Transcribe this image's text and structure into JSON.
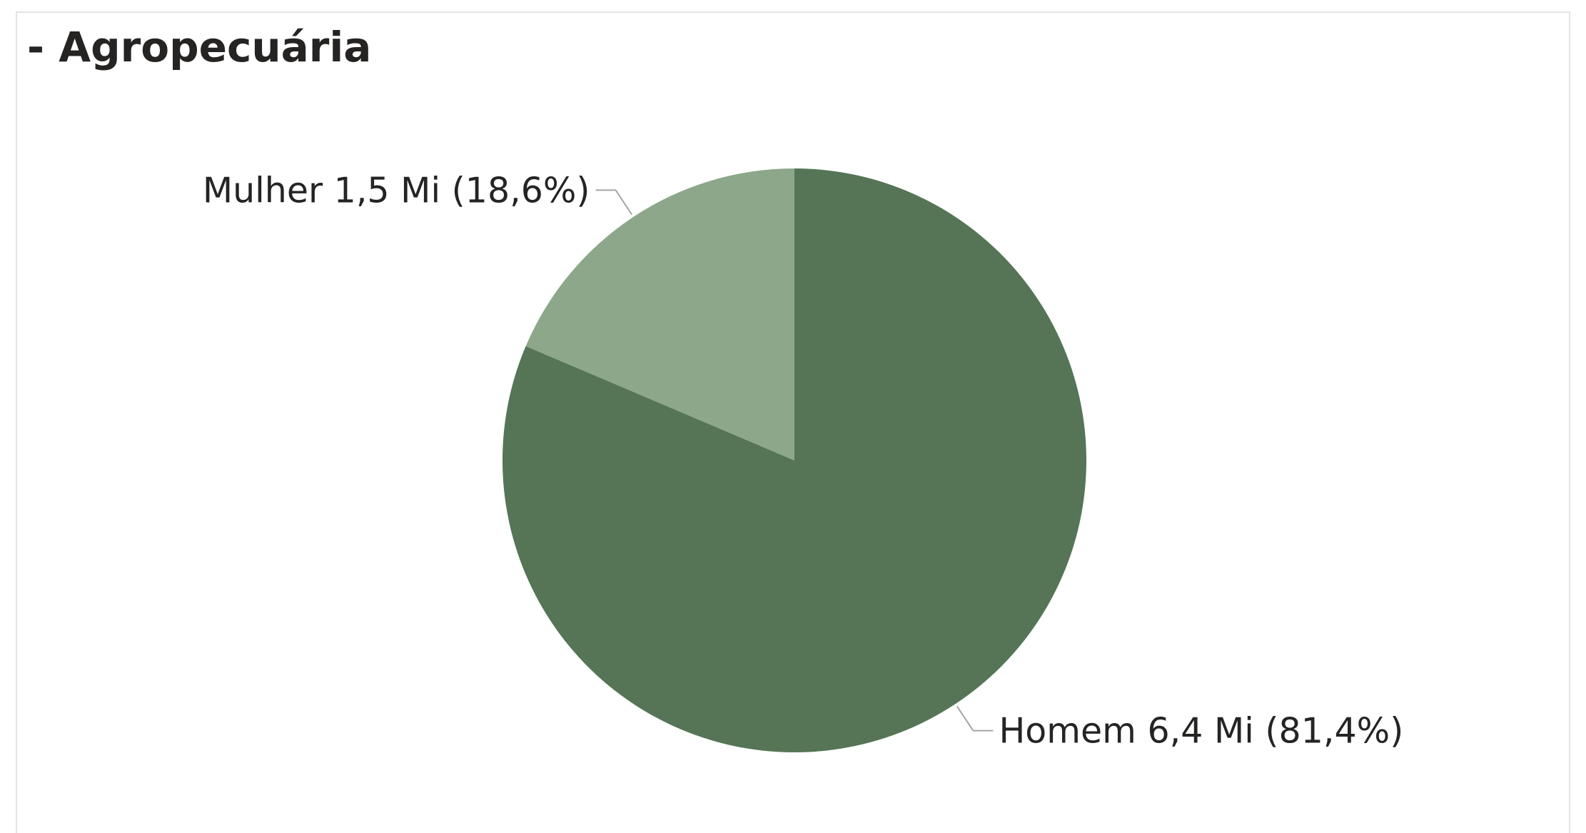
{
  "title": "- Agropecuária",
  "chart_data": {
    "type": "pie",
    "title": "- Agropecuária",
    "start_angle_deg": 0,
    "direction": "clockwise",
    "slices": [
      {
        "label": "Homem",
        "value": 6.4,
        "value_label": "6,4 Mi",
        "percent": 81.4,
        "percent_label": "(81,4%)",
        "color": "#557556"
      },
      {
        "label": "Mulher",
        "value": 1.5,
        "value_label": "1,5 Mi",
        "percent": 18.6,
        "percent_label": "(18,6%)",
        "color": "#8ca789"
      }
    ],
    "leader_line_color": "#a5a5a5",
    "label_color": "#252423"
  }
}
